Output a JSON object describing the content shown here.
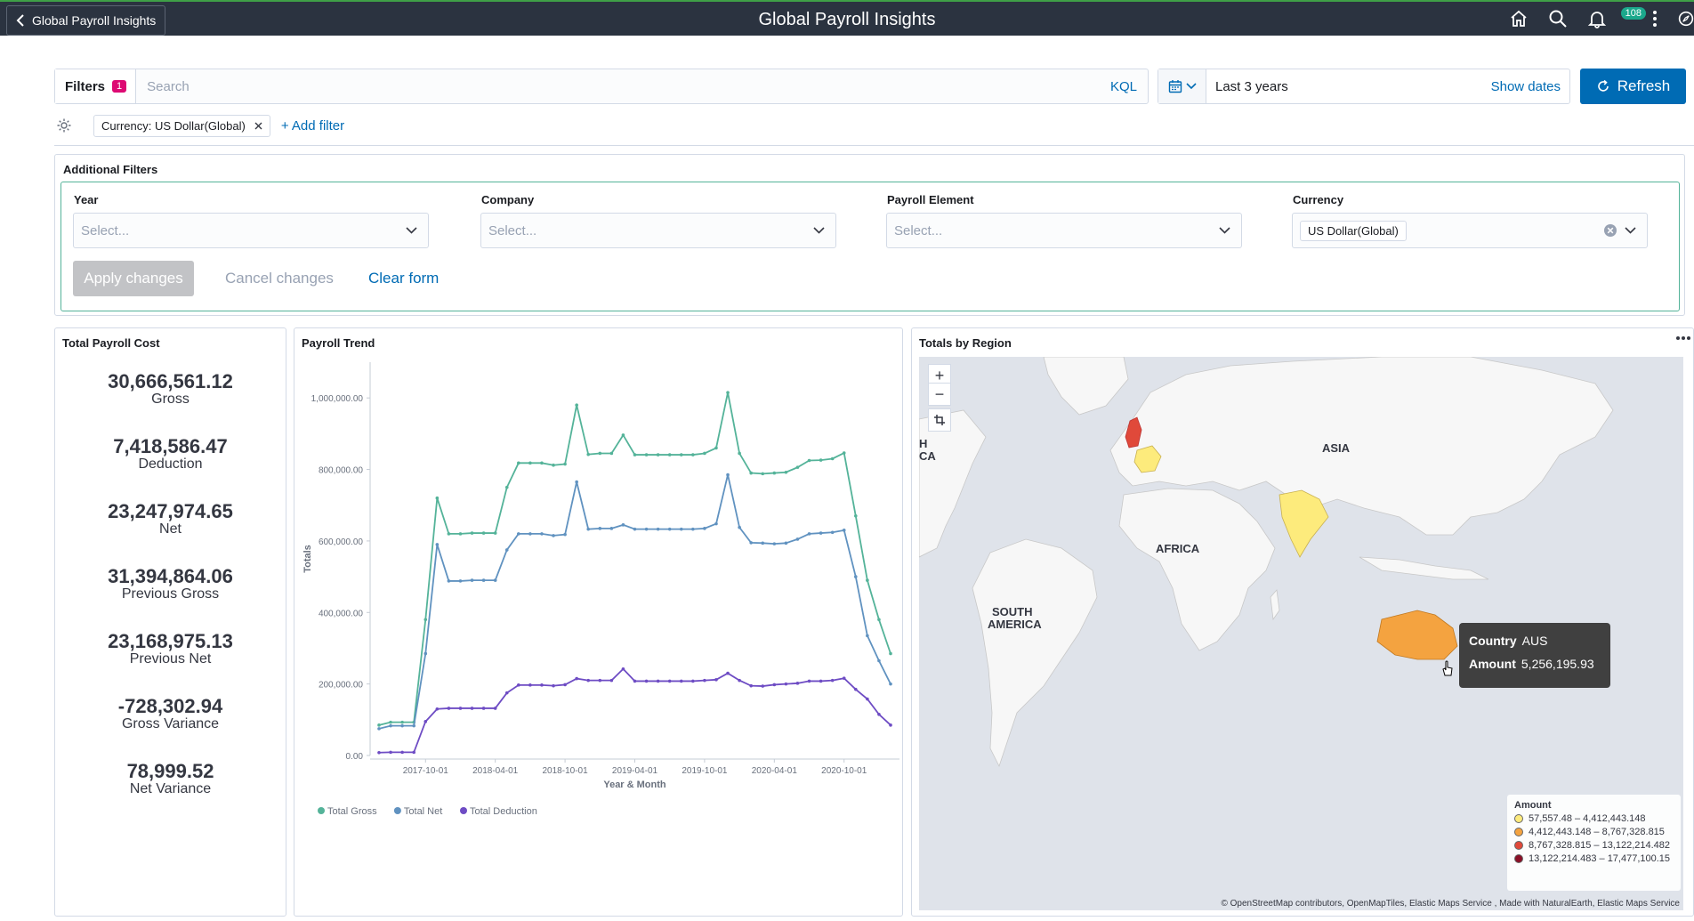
{
  "header": {
    "back_label": "Global Payroll Insights",
    "title": "Global Payroll Insights",
    "notif_count": "108"
  },
  "querybar": {
    "filters_label": "Filters",
    "filters_count": "1",
    "search_placeholder": "Search",
    "kql": "KQL",
    "date_range": "Last 3 years",
    "show_dates": "Show dates",
    "refresh": "Refresh"
  },
  "filter_pill": {
    "label": "Currency: US Dollar(Global)",
    "add_filter": "+ Add filter"
  },
  "additional_filters": {
    "title": "Additional Filters",
    "fields": [
      {
        "label": "Year",
        "placeholder": "Select..."
      },
      {
        "label": "Company",
        "placeholder": "Select..."
      },
      {
        "label": "Payroll Element",
        "placeholder": "Select..."
      },
      {
        "label": "Currency",
        "value": "US Dollar(Global)"
      }
    ],
    "apply": "Apply changes",
    "cancel": "Cancel changes",
    "clear": "Clear form"
  },
  "total_panel": {
    "title": "Total Payroll Cost",
    "metrics": [
      {
        "value": "30,666,561.12",
        "label": "Gross"
      },
      {
        "value": "7,418,586.47",
        "label": "Deduction"
      },
      {
        "value": "23,247,974.65",
        "label": "Net"
      },
      {
        "value": "31,394,864.06",
        "label": "Previous Gross"
      },
      {
        "value": "23,168,975.13",
        "label": "Previous Net"
      },
      {
        "value": "-728,302.94",
        "label": "Gross Variance"
      },
      {
        "value": "78,999.52",
        "label": "Net Variance"
      }
    ]
  },
  "trend_panel": {
    "title": "Payroll Trend"
  },
  "chart_data": {
    "type": "line",
    "title": "Payroll Trend",
    "xlabel": "Year & Month",
    "ylabel": "Totals",
    "ylim": [
      0,
      1100000
    ],
    "yticks": [
      "0.00",
      "200,000.00",
      "400,000.00",
      "600,000.00",
      "800,000.00",
      "1,000,000.00"
    ],
    "xticks": [
      "2017-10-01",
      "2018-04-01",
      "2018-10-01",
      "2019-04-01",
      "2019-10-01",
      "2020-04-01",
      "2020-10-01"
    ],
    "series": [
      {
        "name": "Total Gross",
        "color": "#54b399",
        "values": [
          85000,
          93000,
          93000,
          93000,
          380000,
          720000,
          620000,
          620000,
          622000,
          622000,
          622000,
          750000,
          818000,
          818000,
          818000,
          812000,
          815000,
          980000,
          842000,
          845000,
          845000,
          896000,
          841000,
          841000,
          841000,
          841000,
          841000,
          841000,
          845000,
          860000,
          1015000,
          845000,
          790000,
          788000,
          790000,
          792000,
          806000,
          825000,
          826000,
          830000,
          846000,
          670000,
          490000,
          380000,
          285000
        ]
      },
      {
        "name": "Total Net",
        "color": "#6092c0",
        "values": [
          75000,
          83000,
          83000,
          83000,
          285000,
          590000,
          488000,
          488000,
          490000,
          490000,
          490000,
          575000,
          620000,
          620000,
          620000,
          615000,
          618000,
          765000,
          633000,
          635000,
          635000,
          645000,
          633000,
          633000,
          633000,
          633000,
          633000,
          633000,
          635000,
          648000,
          785000,
          638000,
          595000,
          594000,
          592000,
          594000,
          605000,
          620000,
          622000,
          624000,
          630000,
          500000,
          335000,
          265000,
          200000
        ]
      },
      {
        "name": "Total Deduction",
        "color": "#6e4cc4",
        "values": [
          8000,
          9000,
          9000,
          9000,
          95000,
          130000,
          132000,
          132000,
          132000,
          132000,
          132000,
          175000,
          197000,
          197000,
          197000,
          195000,
          198000,
          215000,
          210000,
          210000,
          210000,
          242000,
          208000,
          208000,
          208000,
          208000,
          208000,
          208000,
          210000,
          212000,
          230000,
          210000,
          195000,
          194000,
          198000,
          200000,
          202000,
          208000,
          208000,
          210000,
          216000,
          185000,
          158000,
          115000,
          85000
        ]
      }
    ]
  },
  "region_panel": {
    "title": "Totals by Region",
    "labels": {
      "asia": "ASIA",
      "africa": "AFRICA",
      "south_america_1": "SOUTH",
      "south_america_2": "AMERICA",
      "h": "H",
      "ca": "CA"
    },
    "tooltip": {
      "country_key": "Country",
      "country_val": "AUS",
      "amount_key": "Amount",
      "amount_val": "5,256,195.93"
    },
    "legend": {
      "title": "Amount",
      "items": [
        {
          "label": "57,557.48 – 4,412,443.148",
          "color": "#fdeb7c"
        },
        {
          "label": "4,412,443.148 – 8,767,328.815",
          "color": "#f4a340"
        },
        {
          "label": "8,767,328.815 – 13,122,214.482",
          "color": "#e0493a"
        },
        {
          "label": "13,122,214.483 – 17,477,100.15",
          "color": "#8a1027"
        }
      ]
    },
    "attribution": "© OpenStreetMap contributors, OpenMapTiles, Elastic Maps Service , Made with NaturalEarth, Elastic Maps Service"
  }
}
